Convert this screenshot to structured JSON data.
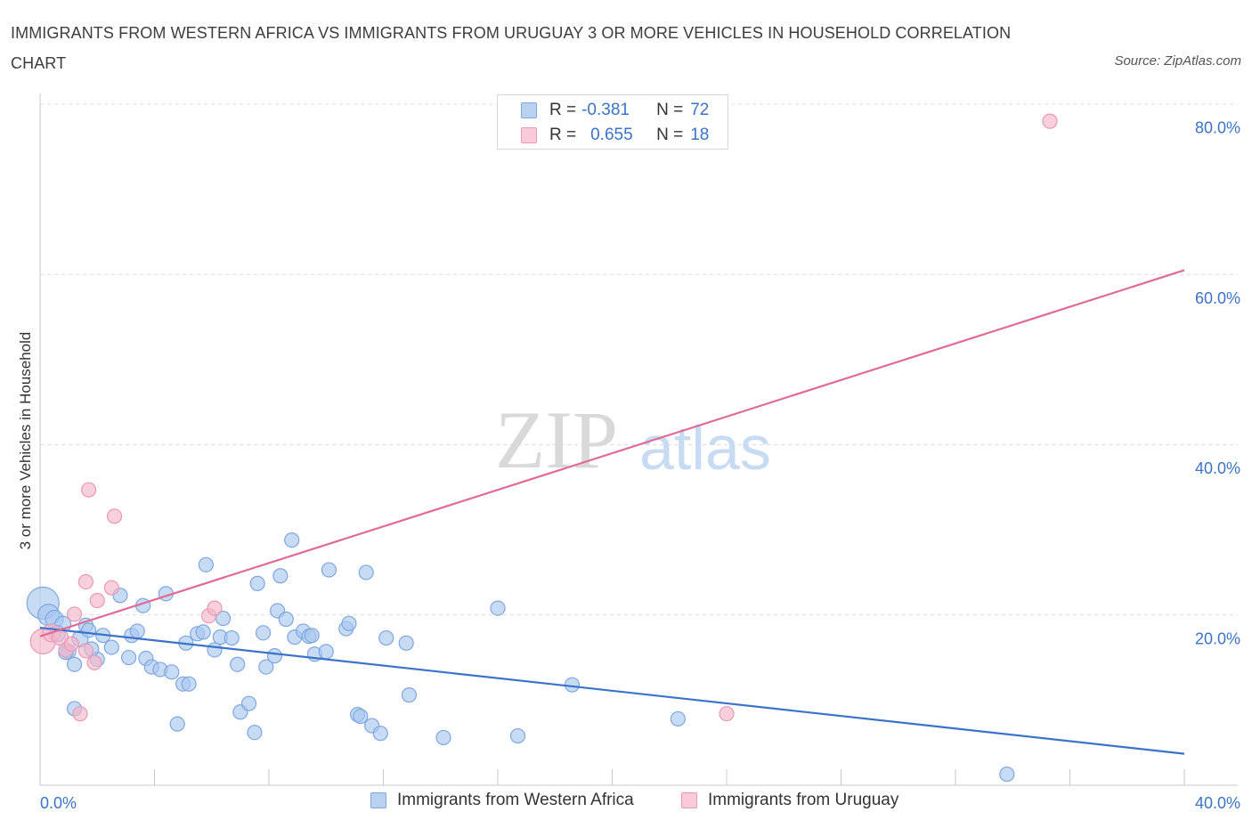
{
  "title": "IMMIGRANTS FROM WESTERN AFRICA VS IMMIGRANTS FROM URUGUAY 3 OR MORE VEHICLES IN HOUSEHOLD CORRELATION CHART",
  "source": "Source: ZipAtlas.com",
  "watermark": {
    "zip": "ZIP",
    "atlas": "atlas"
  },
  "legend": {
    "series1": {
      "r_label": "R =",
      "r_value": "-0.381",
      "n_label": "N =",
      "n_value": "72"
    },
    "series2": {
      "r_label": "R =",
      "r_value": "0.655",
      "n_label": "N =",
      "n_value": "18"
    }
  },
  "chart_data": {
    "type": "scatter",
    "xlabel": "",
    "ylabel": "3 or more Vehicles in Household",
    "xlim": [
      0,
      40
    ],
    "ylim": [
      0,
      80
    ],
    "x_tick_labels": [
      "0.0%",
      "40.0%"
    ],
    "y_ticks": [
      20,
      40,
      60,
      80
    ],
    "y_tick_labels": [
      "20.0%",
      "40.0%",
      "60.0%",
      "80.0%"
    ],
    "grid": true,
    "legend_position": "bottom",
    "colors": {
      "blue": "#3b73c8",
      "blue_fill": "#a9c8f0",
      "pink": "#e06b96",
      "pink_fill": "#f5b7c9"
    },
    "series": [
      {
        "name": "Immigrants from Western Africa",
        "color": "#3b73c8",
        "trend": {
          "x": [
            0,
            40
          ],
          "y": [
            18.5,
            3.7
          ]
        },
        "points": [
          {
            "x": 0.1,
            "y": 21.4,
            "s": 18
          },
          {
            "x": 0.3,
            "y": 20.0,
            "s": 12
          },
          {
            "x": 0.5,
            "y": 19.5,
            "s": 10
          },
          {
            "x": 0.8,
            "y": 18.9,
            "s": 9
          },
          {
            "x": 0.6,
            "y": 17.8,
            "s": 9
          },
          {
            "x": 1.4,
            "y": 17.2,
            "s": 9
          },
          {
            "x": 1.0,
            "y": 15.7,
            "s": 8
          },
          {
            "x": 1.2,
            "y": 14.2,
            "s": 8
          },
          {
            "x": 1.6,
            "y": 18.8,
            "s": 8
          },
          {
            "x": 1.7,
            "y": 18.2,
            "s": 8
          },
          {
            "x": 2.2,
            "y": 17.6,
            "s": 8
          },
          {
            "x": 2.5,
            "y": 16.2,
            "s": 8
          },
          {
            "x": 2.0,
            "y": 14.8,
            "s": 8
          },
          {
            "x": 2.8,
            "y": 22.3,
            "s": 8
          },
          {
            "x": 3.1,
            "y": 15.0,
            "s": 8
          },
          {
            "x": 3.2,
            "y": 17.6,
            "s": 8
          },
          {
            "x": 3.4,
            "y": 18.1,
            "s": 8
          },
          {
            "x": 3.6,
            "y": 21.1,
            "s": 8
          },
          {
            "x": 3.7,
            "y": 14.9,
            "s": 8
          },
          {
            "x": 3.9,
            "y": 13.9,
            "s": 8
          },
          {
            "x": 4.2,
            "y": 13.6,
            "s": 8
          },
          {
            "x": 4.4,
            "y": 22.5,
            "s": 8
          },
          {
            "x": 4.6,
            "y": 13.3,
            "s": 8
          },
          {
            "x": 4.8,
            "y": 7.2,
            "s": 8
          },
          {
            "x": 5.0,
            "y": 11.9,
            "s": 8
          },
          {
            "x": 5.2,
            "y": 11.9,
            "s": 8
          },
          {
            "x": 5.1,
            "y": 16.7,
            "s": 8
          },
          {
            "x": 5.5,
            "y": 17.8,
            "s": 8
          },
          {
            "x": 5.7,
            "y": 18.0,
            "s": 8
          },
          {
            "x": 5.8,
            "y": 25.9,
            "s": 8
          },
          {
            "x": 6.1,
            "y": 15.9,
            "s": 8
          },
          {
            "x": 6.3,
            "y": 17.4,
            "s": 8
          },
          {
            "x": 6.4,
            "y": 19.6,
            "s": 8
          },
          {
            "x": 6.7,
            "y": 17.3,
            "s": 8
          },
          {
            "x": 6.9,
            "y": 14.2,
            "s": 8
          },
          {
            "x": 7.0,
            "y": 8.6,
            "s": 8
          },
          {
            "x": 7.3,
            "y": 9.6,
            "s": 8
          },
          {
            "x": 7.5,
            "y": 6.2,
            "s": 8
          },
          {
            "x": 7.6,
            "y": 23.7,
            "s": 8
          },
          {
            "x": 7.8,
            "y": 17.9,
            "s": 8
          },
          {
            "x": 7.9,
            "y": 13.9,
            "s": 8
          },
          {
            "x": 8.2,
            "y": 15.2,
            "s": 8
          },
          {
            "x": 8.3,
            "y": 20.5,
            "s": 8
          },
          {
            "x": 8.4,
            "y": 24.6,
            "s": 8
          },
          {
            "x": 8.6,
            "y": 19.5,
            "s": 8
          },
          {
            "x": 8.8,
            "y": 28.8,
            "s": 8
          },
          {
            "x": 8.9,
            "y": 17.4,
            "s": 8
          },
          {
            "x": 9.2,
            "y": 18.1,
            "s": 8
          },
          {
            "x": 9.4,
            "y": 17.5,
            "s": 8
          },
          {
            "x": 9.5,
            "y": 17.6,
            "s": 8
          },
          {
            "x": 9.6,
            "y": 15.4,
            "s": 8
          },
          {
            "x": 10.0,
            "y": 15.7,
            "s": 8
          },
          {
            "x": 10.1,
            "y": 25.3,
            "s": 8
          },
          {
            "x": 10.7,
            "y": 18.4,
            "s": 8
          },
          {
            "x": 10.8,
            "y": 19.0,
            "s": 8
          },
          {
            "x": 11.1,
            "y": 8.3,
            "s": 8
          },
          {
            "x": 11.2,
            "y": 8.1,
            "s": 8
          },
          {
            "x": 11.4,
            "y": 25.0,
            "s": 8
          },
          {
            "x": 11.6,
            "y": 7.0,
            "s": 8
          },
          {
            "x": 11.9,
            "y": 6.1,
            "s": 8
          },
          {
            "x": 12.1,
            "y": 17.3,
            "s": 8
          },
          {
            "x": 12.8,
            "y": 16.7,
            "s": 8
          },
          {
            "x": 12.9,
            "y": 10.6,
            "s": 8
          },
          {
            "x": 14.1,
            "y": 5.6,
            "s": 8
          },
          {
            "x": 16.0,
            "y": 20.8,
            "s": 8
          },
          {
            "x": 16.7,
            "y": 5.8,
            "s": 8
          },
          {
            "x": 18.6,
            "y": 11.8,
            "s": 8
          },
          {
            "x": 22.3,
            "y": 7.8,
            "s": 8
          },
          {
            "x": 33.8,
            "y": 1.3,
            "s": 8
          },
          {
            "x": 1.2,
            "y": 9.0,
            "s": 8
          },
          {
            "x": 1.8,
            "y": 16.0,
            "s": 8
          },
          {
            "x": 0.9,
            "y": 15.6,
            "s": 8
          }
        ]
      },
      {
        "name": "Immigrants from Uruguay",
        "color": "#e06b96",
        "trend": {
          "x": [
            0,
            40
          ],
          "y": [
            17.5,
            60.5
          ]
        },
        "points": [
          {
            "x": 0.1,
            "y": 16.9,
            "s": 14
          },
          {
            "x": 0.4,
            "y": 17.9,
            "s": 10
          },
          {
            "x": 0.7,
            "y": 17.4,
            "s": 9
          },
          {
            "x": 0.9,
            "y": 15.9,
            "s": 8
          },
          {
            "x": 1.1,
            "y": 16.6,
            "s": 8
          },
          {
            "x": 1.2,
            "y": 20.1,
            "s": 8
          },
          {
            "x": 1.4,
            "y": 8.4,
            "s": 8
          },
          {
            "x": 1.6,
            "y": 15.8,
            "s": 8
          },
          {
            "x": 1.6,
            "y": 23.9,
            "s": 8
          },
          {
            "x": 1.7,
            "y": 34.7,
            "s": 8
          },
          {
            "x": 1.9,
            "y": 14.4,
            "s": 8
          },
          {
            "x": 2.0,
            "y": 21.7,
            "s": 8
          },
          {
            "x": 2.5,
            "y": 23.2,
            "s": 8
          },
          {
            "x": 2.6,
            "y": 31.6,
            "s": 8
          },
          {
            "x": 5.9,
            "y": 19.9,
            "s": 8
          },
          {
            "x": 6.1,
            "y": 20.8,
            "s": 8
          },
          {
            "x": 24.0,
            "y": 8.4,
            "s": 8
          },
          {
            "x": 35.3,
            "y": 78.0,
            "s": 8
          }
        ]
      }
    ]
  }
}
